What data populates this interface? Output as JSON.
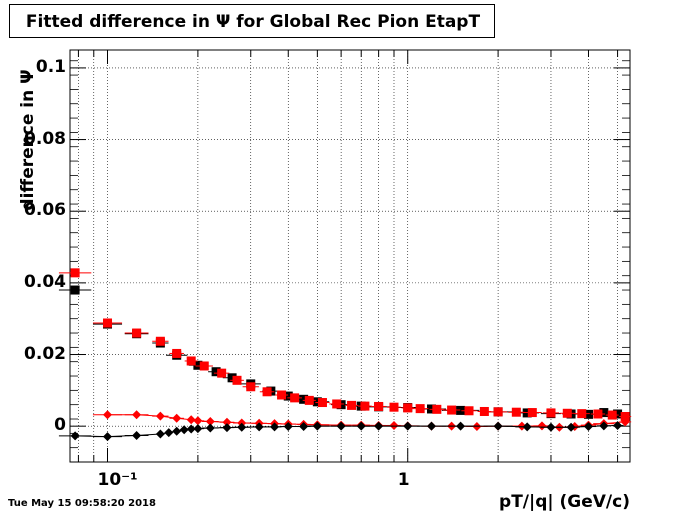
{
  "chart_data": {
    "type": "scatter",
    "title": "Fitted difference in  Ψ  for Global Rec Pion EtapT",
    "xlabel": "pT/|q| (GeV/c)",
    "ylabel": "difference in  Ψ",
    "x_scale": "log",
    "xlim": [
      0.075,
      5.5
    ],
    "ylim": [
      -0.01,
      0.105
    ],
    "grid": true,
    "x_tick_labels": [
      "10⁻¹",
      "1"
    ],
    "x_tick_values": [
      0.1,
      1
    ],
    "y_tick_labels": [
      "0",
      "0.02",
      "0.04",
      "0.06",
      "0.08",
      "0.1"
    ],
    "y_tick_values": [
      0,
      0.02,
      0.04,
      0.06,
      0.08,
      0.1
    ],
    "series": [
      {
        "color": "#000000",
        "marker": "square",
        "x": [
          0.078,
          0.1,
          0.125,
          0.15,
          0.17,
          0.2,
          0.23,
          0.26,
          0.3,
          0.35,
          0.4,
          0.45,
          0.5,
          0.6,
          0.7,
          0.8,
          1.0,
          1.2,
          1.5,
          2.0,
          2.5,
          3.0,
          3.5,
          4.0,
          4.5,
          5.0
        ],
        "y": [
          0.038,
          0.0285,
          0.0258,
          0.0232,
          0.0198,
          0.017,
          0.0152,
          0.0135,
          0.0118,
          0.0098,
          0.0084,
          0.0075,
          0.0068,
          0.006,
          0.0056,
          0.0054,
          0.0052,
          0.0048,
          0.0044,
          0.004,
          0.0037,
          0.0035,
          0.0034,
          0.0033,
          0.0038,
          0.0034
        ]
      },
      {
        "color": "#ff0000",
        "marker": "square",
        "x": [
          0.078,
          0.1,
          0.125,
          0.15,
          0.17,
          0.19,
          0.21,
          0.24,
          0.27,
          0.3,
          0.34,
          0.38,
          0.42,
          0.47,
          0.52,
          0.58,
          0.65,
          0.72,
          0.8,
          0.9,
          1.0,
          1.1,
          1.25,
          1.4,
          1.6,
          1.8,
          2.0,
          2.3,
          2.6,
          3.0,
          3.4,
          3.8,
          4.3,
          4.8,
          5.3
        ],
        "y": [
          0.0428,
          0.0288,
          0.026,
          0.0237,
          0.0203,
          0.0182,
          0.0168,
          0.0148,
          0.0128,
          0.011,
          0.0096,
          0.0087,
          0.0079,
          0.0072,
          0.0066,
          0.0062,
          0.0058,
          0.0056,
          0.0055,
          0.0053,
          0.0051,
          0.0049,
          0.0047,
          0.0045,
          0.0043,
          0.0041,
          0.004,
          0.0039,
          0.0038,
          0.0037,
          0.0036,
          0.0035,
          0.0034,
          0.0031,
          0.0027
        ]
      },
      {
        "color": "#ff0000",
        "marker": "diamond",
        "x": [
          0.1,
          0.125,
          0.15,
          0.17,
          0.19,
          0.2,
          0.22,
          0.25,
          0.28,
          0.32,
          0.36,
          0.4,
          0.45,
          0.5,
          0.6,
          0.7,
          0.8,
          0.9,
          1.0,
          1.2,
          1.4,
          1.7,
          2.0,
          2.4,
          2.8,
          3.2,
          3.6,
          4.0,
          4.5,
          5.3
        ],
        "y": [
          0.0032,
          0.0032,
          0.0028,
          0.0022,
          0.0018,
          0.0015,
          0.0013,
          0.0011,
          0.0009,
          0.0008,
          0.0007,
          0.0006,
          0.0005,
          0.0004,
          0.0003,
          0.0003,
          0.0002,
          0.0002,
          0.0001,
          0.0,
          0.0,
          -0.0001,
          0.0,
          0.0,
          0.0001,
          -0.0003,
          -0.0001,
          0.0003,
          0.0007,
          0.0012
        ]
      },
      {
        "color": "#000000",
        "marker": "diamond",
        "x": [
          0.078,
          0.1,
          0.125,
          0.15,
          0.16,
          0.17,
          0.18,
          0.19,
          0.2,
          0.22,
          0.25,
          0.28,
          0.32,
          0.36,
          0.4,
          0.45,
          0.5,
          0.6,
          0.7,
          0.8,
          1.0,
          1.2,
          1.5,
          2.0,
          2.5,
          3.0,
          3.5,
          4.0,
          4.5,
          5.0
        ],
        "y": [
          -0.0027,
          -0.0029,
          -0.0026,
          -0.0022,
          -0.0018,
          -0.0014,
          -0.001,
          -0.0008,
          -0.0007,
          -0.0005,
          -0.0004,
          -0.0003,
          -0.0002,
          -0.0002,
          -0.0001,
          -0.0001,
          0.0,
          0.0,
          0.0,
          0.0,
          0.0,
          0.0,
          0.0,
          0.0,
          -0.0002,
          -0.0003,
          -0.0003,
          -0.0001,
          0.0001,
          0.0002
        ]
      }
    ]
  },
  "footer": {
    "timestamp": "Tue May 15 09:58:20 2018"
  }
}
